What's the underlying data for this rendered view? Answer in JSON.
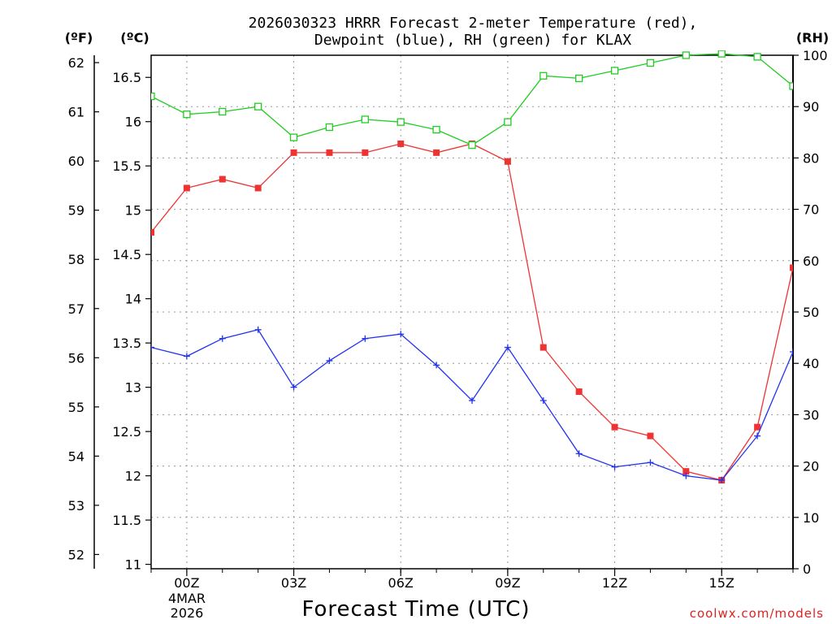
{
  "chart_data": {
    "type": "line",
    "title_line1": "2026030323 HRRR Forecast 2-meter Temperature (red),",
    "title_line2": "Dewpoint (blue), RH (green) for KLAX",
    "xlabel": "Forecast Time (UTC)",
    "left_outer_unit": "(ºF)",
    "left_inner_unit": "(ºC)",
    "right_unit": "(RH)",
    "date_label_line1": "4MAR",
    "date_label_line2": "2026",
    "credit": "coolwx.com/models",
    "x_hours": [
      -1,
      0,
      1,
      2,
      3,
      4,
      5,
      6,
      7,
      8,
      9,
      10,
      11,
      12,
      13,
      14,
      15,
      16,
      17
    ],
    "x_range": [
      -1,
      17
    ],
    "x_ticks": [
      {
        "hour": 0,
        "label": "00Z"
      },
      {
        "hour": 3,
        "label": "03Z"
      },
      {
        "hour": 6,
        "label": "06Z"
      },
      {
        "hour": 9,
        "label": "09Z"
      },
      {
        "hour": 12,
        "label": "12Z"
      },
      {
        "hour": 15,
        "label": "15Z"
      }
    ],
    "y_celsius_range": [
      10.95,
      16.75
    ],
    "celsius_ticks": [
      "11",
      "11.5",
      "12",
      "12.5",
      "13",
      "13.5",
      "14",
      "14.5",
      "15",
      "15.5",
      "16",
      "16.5"
    ],
    "fahrenheit_ticks": [
      "52",
      "53",
      "54",
      "55",
      "56",
      "57",
      "58",
      "59",
      "60",
      "61",
      "62"
    ],
    "rh_range": [
      0,
      100
    ],
    "rh_ticks": [
      "0",
      "10",
      "20",
      "30",
      "40",
      "50",
      "60",
      "70",
      "80",
      "90",
      "100"
    ],
    "series": [
      {
        "name": "Temperature",
        "unit": "C",
        "color": "#ee3333",
        "marker": "filled-square",
        "values": [
          14.75,
          15.25,
          15.35,
          15.25,
          15.65,
          15.65,
          15.65,
          15.75,
          15.65,
          15.75,
          15.55,
          13.45,
          12.95,
          12.55,
          12.45,
          12.05,
          11.95,
          12.55,
          14.35
        ]
      },
      {
        "name": "Dewpoint",
        "unit": "C",
        "color": "#2233ee",
        "marker": "plus",
        "values": [
          13.45,
          13.35,
          13.55,
          13.65,
          13.0,
          13.3,
          13.55,
          13.6,
          13.25,
          12.85,
          13.45,
          12.85,
          12.25,
          12.1,
          12.15,
          12.0,
          11.95,
          12.45,
          13.4
        ]
      },
      {
        "name": "RH",
        "unit": "%",
        "color": "#22cc22",
        "marker": "open-square",
        "values": [
          92.0,
          88.5,
          89.0,
          90.0,
          84.0,
          86.0,
          87.5,
          87.0,
          85.5,
          82.5,
          87.0,
          96.0,
          95.5,
          97.0,
          98.5,
          100.0,
          100.3,
          99.7,
          94.0
        ]
      }
    ]
  }
}
